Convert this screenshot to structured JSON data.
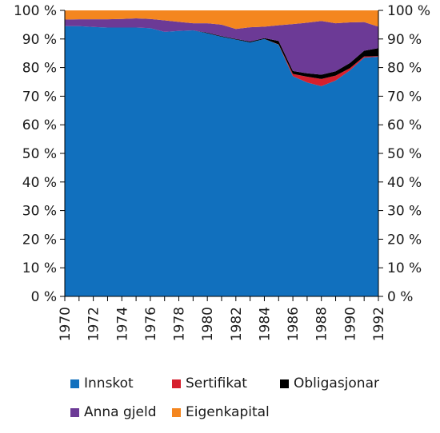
{
  "chart_data": {
    "type": "area",
    "stacked": true,
    "percent_scale": true,
    "title": "",
    "xlabel": "",
    "ylabel": "",
    "x": [
      1970,
      1971,
      1972,
      1973,
      1974,
      1975,
      1976,
      1977,
      1978,
      1979,
      1980,
      1981,
      1982,
      1983,
      1984,
      1985,
      1986,
      1987,
      1988,
      1989,
      1990,
      1991,
      1992
    ],
    "xticks": [
      "1970",
      "1972",
      "1974",
      "1976",
      "1978",
      "1980",
      "1982",
      "1984",
      "1986",
      "1988",
      "1990",
      "1992"
    ],
    "ylim": [
      0,
      100
    ],
    "yticks": [
      "0 %",
      "10 %",
      "20 %",
      "30 %",
      "40 %",
      "50 %",
      "60 %",
      "70 %",
      "80 %",
      "90 %",
      "100 %"
    ],
    "grid": false,
    "legend_position": "bottom",
    "series": [
      {
        "name": "Innskot",
        "color": "#1170be",
        "values": [
          94.5,
          94.5,
          94.2,
          94.0,
          94.0,
          94.0,
          93.8,
          92.5,
          92.8,
          93.0,
          92.0,
          90.8,
          89.8,
          88.8,
          90.0,
          88.0,
          77.0,
          74.8,
          73.5,
          75.5,
          79.0,
          83.5,
          83.8
        ]
      },
      {
        "name": "Sertifikat",
        "color": "#d6202e",
        "values": [
          0,
          0,
          0,
          0,
          0,
          0,
          0,
          0,
          0,
          0,
          0,
          0,
          0,
          0,
          0,
          0.1,
          0.8,
          2.0,
          2.5,
          1.7,
          0.8,
          0.4,
          0.2
        ]
      },
      {
        "name": "Obligasjonar",
        "color": "#000000",
        "values": [
          0,
          0,
          0,
          0,
          0,
          0,
          0,
          0,
          0,
          0,
          0.2,
          0.2,
          0.2,
          0.3,
          0.3,
          1.2,
          1.0,
          1.2,
          1.5,
          1.5,
          1.8,
          2.0,
          2.8
        ]
      },
      {
        "name": "Anna gjeld",
        "color": "#6c3a96",
        "values": [
          2.3,
          2.4,
          2.7,
          2.9,
          3.0,
          3.2,
          3.2,
          4.0,
          3.2,
          2.5,
          3.3,
          4.0,
          3.5,
          5.0,
          4.0,
          5.5,
          16.4,
          17.7,
          18.8,
          16.8,
          14.2,
          10.0,
          7.5
        ]
      },
      {
        "name": "Eigenkapital",
        "color": "#f4861f",
        "values": [
          3.2,
          3.1,
          3.1,
          3.1,
          3.0,
          2.8,
          3.0,
          3.5,
          4.0,
          4.5,
          4.5,
          5.0,
          6.5,
          5.9,
          5.7,
          5.2,
          4.8,
          4.3,
          3.7,
          4.5,
          4.2,
          4.1,
          5.7
        ]
      }
    ]
  },
  "legend": {
    "row1": [
      "Innskot",
      "Sertifikat",
      "Obligasjonar"
    ],
    "row2": [
      "Anna gjeld",
      "Eigenkapital"
    ]
  }
}
